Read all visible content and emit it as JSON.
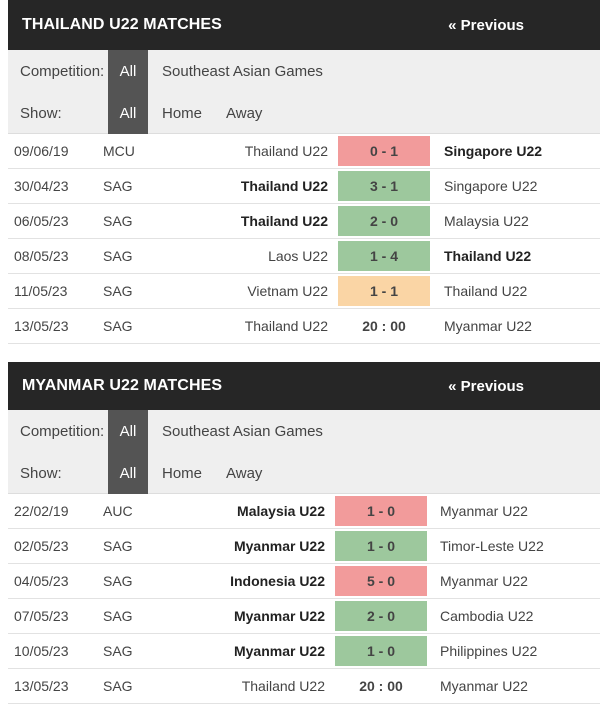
{
  "panels": [
    {
      "title": "THAILAND U22 MATCHES",
      "prev": "« Previous",
      "competition_label": "Competition:",
      "competition_all": "All",
      "competition_option": "Southeast Asian Games",
      "show_label": "Show:",
      "show_all": "All",
      "show_home": "Home",
      "show_away": "Away",
      "matches": [
        {
          "date": "09/06/19",
          "comp": "MCU",
          "home": "Thailand U22",
          "score": "0 - 1",
          "away": "Singapore U22",
          "result": "loss",
          "bold": "away"
        },
        {
          "date": "30/04/23",
          "comp": "SAG",
          "home": "Thailand U22",
          "score": "3 - 1",
          "away": "Singapore U22",
          "result": "win",
          "bold": "home"
        },
        {
          "date": "06/05/23",
          "comp": "SAG",
          "home": "Thailand U22",
          "score": "2 - 0",
          "away": "Malaysia U22",
          "result": "win",
          "bold": "home"
        },
        {
          "date": "08/05/23",
          "comp": "SAG",
          "home": "Laos U22",
          "score": "1 - 4",
          "away": "Thailand U22",
          "result": "win",
          "bold": "away"
        },
        {
          "date": "11/05/23",
          "comp": "SAG",
          "home": "Vietnam U22",
          "score": "1 - 1",
          "away": "Thailand U22",
          "result": "draw",
          "bold": "none"
        },
        {
          "date": "13/05/23",
          "comp": "SAG",
          "home": "Thailand U22",
          "score": "20 : 00",
          "away": "Myanmar U22",
          "result": "none",
          "bold": "none"
        }
      ]
    },
    {
      "title": "MYANMAR U22 MATCHES",
      "prev": "« Previous",
      "competition_label": "Competition:",
      "competition_all": "All",
      "competition_option": "Southeast Asian Games",
      "show_label": "Show:",
      "show_all": "All",
      "show_home": "Home",
      "show_away": "Away",
      "matches": [
        {
          "date": "22/02/19",
          "comp": "AUC",
          "home": "Malaysia U22",
          "score": "1 - 0",
          "away": "Myanmar U22",
          "result": "loss",
          "bold": "home"
        },
        {
          "date": "02/05/23",
          "comp": "SAG",
          "home": "Myanmar U22",
          "score": "1 - 0",
          "away": "Timor-Leste U22",
          "result": "win",
          "bold": "home"
        },
        {
          "date": "04/05/23",
          "comp": "SAG",
          "home": "Indonesia U22",
          "score": "5 - 0",
          "away": "Myanmar U22",
          "result": "loss",
          "bold": "home"
        },
        {
          "date": "07/05/23",
          "comp": "SAG",
          "home": "Myanmar U22",
          "score": "2 - 0",
          "away": "Cambodia U22",
          "result": "win",
          "bold": "home"
        },
        {
          "date": "10/05/23",
          "comp": "SAG",
          "home": "Myanmar U22",
          "score": "1 - 0",
          "away": "Philippines U22",
          "result": "win",
          "bold": "home"
        },
        {
          "date": "13/05/23",
          "comp": "SAG",
          "home": "Thailand U22",
          "score": "20 : 00",
          "away": "Myanmar U22",
          "result": "none",
          "bold": "none"
        }
      ]
    }
  ],
  "colors": {
    "header_bg": "#262626",
    "filter_bg": "#efefef",
    "active_pill": "#545454",
    "win": "#9dc89d",
    "loss": "#f29b9b",
    "draw": "#fad5a5"
  }
}
